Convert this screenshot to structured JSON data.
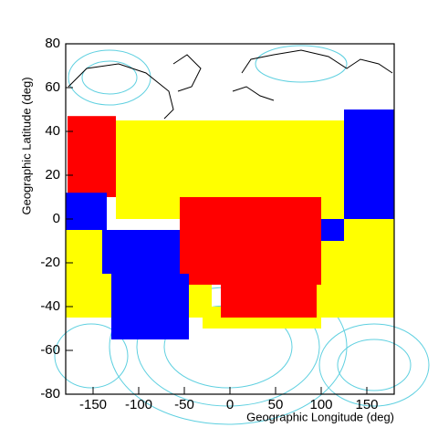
{
  "chart_data": {
    "type": "region-map",
    "x_label": "Geographic Longitude (deg)",
    "y_label": "Geographic Latitude (deg)",
    "xlim": [
      -180,
      180
    ],
    "xticks": [
      -150,
      -100,
      -50,
      0,
      50,
      100,
      150
    ],
    "ylim": [
      -80,
      80
    ],
    "yticks": [
      -80,
      -60,
      -40,
      -20,
      0,
      20,
      40,
      60,
      80
    ],
    "series": [
      {
        "color": "#ffff00",
        "blocks": [
          {
            "x": [
              -125,
              125
            ],
            "y": [
              0,
              45
            ]
          },
          {
            "x": [
              -180,
              -130
            ],
            "y": [
              -45,
              -5
            ]
          },
          {
            "x": [
              95,
              180
            ],
            "y": [
              -45,
              0
            ]
          },
          {
            "x": [
              -55,
              -20
            ],
            "y": [
              -45,
              -20
            ]
          },
          {
            "x": [
              -30,
              100
            ],
            "y": [
              -50,
              -40
            ]
          }
        ]
      },
      {
        "color": "#ff0000",
        "blocks": [
          {
            "x": [
              -178,
              -125
            ],
            "y": [
              10,
              47
            ]
          },
          {
            "x": [
              -55,
              100
            ],
            "y": [
              -30,
              10
            ]
          },
          {
            "x": [
              -10,
              95
            ],
            "y": [
              -45,
              -30
            ]
          }
        ]
      },
      {
        "color": "#0000ff",
        "blocks": [
          {
            "x": [
              -180,
              -135
            ],
            "y": [
              -5,
              12
            ]
          },
          {
            "x": [
              -140,
              -55
            ],
            "y": [
              -25,
              -5
            ]
          },
          {
            "x": [
              -130,
              -45
            ],
            "y": [
              -55,
              -25
            ]
          },
          {
            "x": [
              125,
              180
            ],
            "y": [
              0,
              50
            ]
          },
          {
            "x": [
              100,
              125
            ],
            "y": [
              -10,
              0
            ]
          }
        ]
      }
    ]
  }
}
